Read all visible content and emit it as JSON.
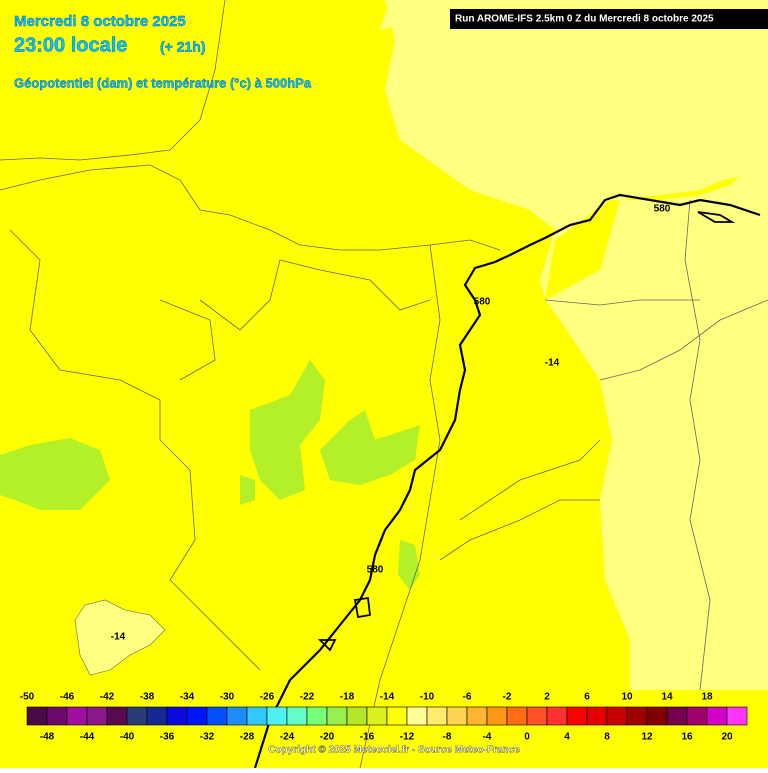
{
  "header": {
    "date": "Mercredi 8 octobre 2025",
    "time": "23:00 locale",
    "lead": "(+ 21h)",
    "subtitle": "Géopotentiel (dam) et température (°c) à 500hPa",
    "run": "Run AROME-IFS 2.5km 0 Z du Mercredi 8 octobre 2025"
  },
  "map_labels": [
    "580",
    "580",
    "580",
    "-14",
    "-14"
  ],
  "scale": {
    "top_labels": [
      -50,
      -46,
      -42,
      -38,
      -34,
      -30,
      -26,
      -22,
      -18,
      -14,
      -10,
      -6,
      -2,
      2,
      6,
      10,
      14,
      18
    ],
    "bottom_labels": [
      -48,
      -44,
      -40,
      -36,
      -32,
      -28,
      -24,
      -20,
      -16,
      -12,
      -8,
      -4,
      0,
      4,
      8,
      12,
      16,
      20
    ],
    "colors": [
      "#4b0b4b",
      "#6e0a6e",
      "#a010a0",
      "#8a1a8a",
      "#5a0a50",
      "#283c78",
      "#142896",
      "#0a0adc",
      "#0014ff",
      "#0050ff",
      "#1e8cff",
      "#32c8ff",
      "#50f0f0",
      "#64ffc8",
      "#78ff78",
      "#96f050",
      "#b4e628",
      "#dcf01e",
      "#ffff00",
      "#ffff96",
      "#ffeb6e",
      "#ffd250",
      "#ffb432",
      "#ff9614",
      "#ff6e14",
      "#ff5028",
      "#ff3232",
      "#ff0000",
      "#e60000",
      "#c80000",
      "#a00000",
      "#820000",
      "#780050",
      "#a0006e",
      "#d200c8",
      "#ff32ff"
    ]
  },
  "copyright": "Copyright © 2025 Meteociel.fr - Source Meteo-France"
}
